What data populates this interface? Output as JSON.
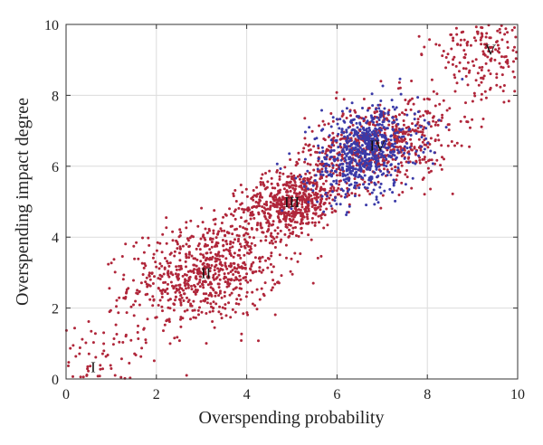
{
  "chart_data": {
    "type": "scatter",
    "xlabel": "Overspending probability",
    "ylabel": "Overspending impact degree",
    "xlim": [
      0,
      10
    ],
    "ylim": [
      0,
      10
    ],
    "xticks": [
      "0",
      "2",
      "4",
      "6",
      "8",
      "10"
    ],
    "yticks": [
      "0",
      "2",
      "4",
      "6",
      "8",
      "10"
    ],
    "grid": true,
    "series_colors": {
      "red": "#b0263a",
      "blue": "#3a3aa8"
    },
    "clusters": [
      {
        "label": "I",
        "x": 0.6,
        "y": 0.35,
        "color": "red",
        "n": 110,
        "sx": 0.75,
        "sy": 0.75,
        "rho": 0.0
      },
      {
        "label": "II",
        "x": 3.1,
        "y": 3.0,
        "color": "red",
        "n": 750,
        "sx": 0.85,
        "sy": 0.75,
        "rho": 0.25
      },
      {
        "label": "III",
        "x": 5.0,
        "y": 5.0,
        "color": "red",
        "n": 550,
        "sx": 0.55,
        "sy": 0.45,
        "rho": 0.25
      },
      {
        "label": "IV",
        "x": 6.9,
        "y": 6.6,
        "color": "red",
        "n": 650,
        "sx": 0.8,
        "sy": 0.65,
        "rho": 0.3
      },
      {
        "label": "",
        "x": 6.6,
        "y": 6.4,
        "color": "blue",
        "n": 650,
        "sx": 0.6,
        "sy": 0.65,
        "rho": 0.3
      },
      {
        "label": "V",
        "x": 9.4,
        "y": 9.3,
        "color": "red",
        "n": 260,
        "sx": 0.7,
        "sy": 0.7,
        "rho": 0.1
      }
    ]
  }
}
